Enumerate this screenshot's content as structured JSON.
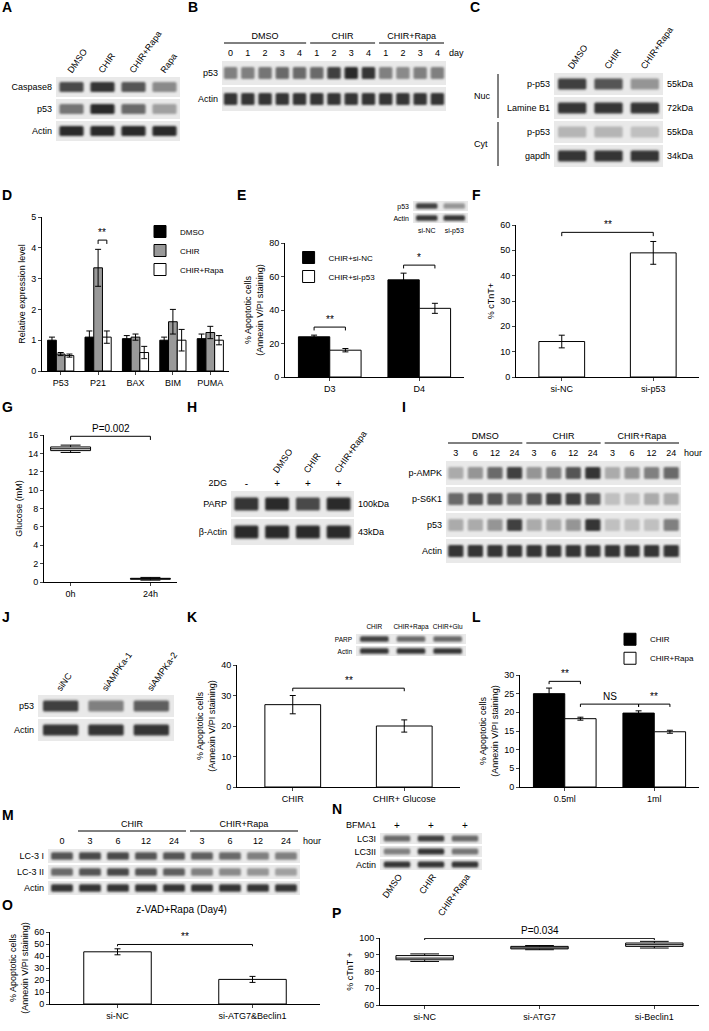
{
  "chart_data": [
    {
      "panel": "D",
      "type": "bar",
      "categories": [
        "P53",
        "P21",
        "BAX",
        "BIM",
        "PUMA"
      ],
      "y_label": "Relative expression level",
      "ylim": [
        0,
        5
      ],
      "yticks": [
        0,
        1,
        2,
        3,
        4,
        5
      ],
      "legend": "top right",
      "series": [
        {
          "name": "DMSO",
          "color": "#000000",
          "values": [
            1.0,
            1.1,
            1.05,
            1.0,
            1.05
          ],
          "errors": [
            0.1,
            0.2,
            0.1,
            0.1,
            0.15
          ]
        },
        {
          "name": "CHIR",
          "color": "#999999",
          "values": [
            0.55,
            3.35,
            1.1,
            1.6,
            1.25
          ],
          "errors": [
            0.05,
            0.6,
            0.1,
            0.4,
            0.2
          ]
        },
        {
          "name": "CHIR+Rapa",
          "color": "#ffffff",
          "values": [
            0.5,
            1.1,
            0.6,
            1.0,
            1.0
          ],
          "errors": [
            0.05,
            0.2,
            0.2,
            0.35,
            0.15
          ]
        }
      ],
      "annotations": [
        {
          "text": "**",
          "from": {
            "category": "P21",
            "series": "CHIR"
          },
          "to": {
            "category": "P21",
            "series": "CHIR+Rapa"
          }
        }
      ]
    },
    {
      "panel": "E",
      "type": "bar",
      "categories": [
        "D3",
        "D4"
      ],
      "y_label": "% Apoptotic cells\n(Annexin V/PI staining)",
      "ylim": [
        0,
        80
      ],
      "yticks": [
        0,
        20,
        40,
        60,
        80
      ],
      "legend": "top left",
      "series": [
        {
          "name": "CHIR+si-NC",
          "color": "#000000",
          "values": [
            24,
            58
          ],
          "errors": [
            1,
            4
          ]
        },
        {
          "name": "CHIR+si-p53",
          "color": "#ffffff",
          "values": [
            16,
            41
          ],
          "errors": [
            1,
            3
          ]
        }
      ],
      "annotations": [
        {
          "text": "**",
          "from": {
            "category": "D3",
            "series": "CHIR+si-NC"
          },
          "to": {
            "category": "D3",
            "series": "CHIR+si-p53"
          }
        },
        {
          "text": "*",
          "from": {
            "category": "D4",
            "series": "CHIR+si-NC"
          },
          "to": {
            "category": "D4",
            "series": "CHIR+si-p53"
          }
        }
      ]
    },
    {
      "panel": "F",
      "type": "bar",
      "categories": [
        "si-NC",
        "si-p53"
      ],
      "y_label": "% cTnT+",
      "ylim": [
        0,
        60
      ],
      "yticks": [
        0,
        10,
        20,
        30,
        40,
        50,
        60
      ],
      "color": "#ffffff",
      "values": [
        14,
        49
      ],
      "errors": [
        2.5,
        4.5
      ],
      "annotations": [
        {
          "text": "**",
          "from": {
            "category": "si-NC"
          },
          "to": {
            "category": "si-p53"
          }
        }
      ]
    },
    {
      "panel": "G",
      "type": "box",
      "categories": [
        "0h",
        "24h"
      ],
      "y_label": "Glucose (mM)",
      "ylim": [
        0,
        16
      ],
      "yticks": [
        0,
        2,
        4,
        6,
        8,
        10,
        12,
        14,
        16
      ],
      "boxes": [
        {
          "min": 14.1,
          "q1": 14.3,
          "median": 14.5,
          "q3": 14.7,
          "max": 14.9
        },
        {
          "min": 0.2,
          "q1": 0.3,
          "median": 0.35,
          "q3": 0.4,
          "max": 0.5
        }
      ],
      "annotations": [
        {
          "text": "P=0.002",
          "from": {
            "category": "0h"
          },
          "to": {
            "category": "24h"
          }
        }
      ]
    },
    {
      "panel": "K",
      "type": "bar",
      "categories": [
        "CHIR",
        "CHIR+ Glucose"
      ],
      "y_label": "% Apoptotic cells\n(Annexin V/PI staining)",
      "ylim": [
        0,
        40
      ],
      "yticks": [
        0,
        10,
        20,
        30,
        40
      ],
      "color": "#ffffff",
      "values": [
        27,
        20
      ],
      "errors": [
        3,
        2
      ],
      "annotations": [
        {
          "text": "**",
          "from": {
            "category": "CHIR"
          },
          "to": {
            "category": "CHIR+ Glucose"
          }
        }
      ]
    },
    {
      "panel": "L",
      "type": "bar",
      "categories": [
        "0.5ml",
        "1ml"
      ],
      "y_label": "% Apoptotic cells\n(Annexin V/PI staining)",
      "ylim": [
        0,
        30
      ],
      "yticks": [
        0,
        5,
        10,
        15,
        20,
        25,
        30
      ],
      "legend": "top right",
      "series": [
        {
          "name": "CHIR",
          "color": "#000000",
          "values": [
            25,
            19.8
          ],
          "errors": [
            1.5,
            0.6
          ]
        },
        {
          "name": "CHIR+Rapa",
          "color": "#ffffff",
          "values": [
            18.3,
            14.8
          ],
          "errors": [
            0.4,
            0.4
          ]
        }
      ],
      "annotations": [
        {
          "text": "**",
          "from": {
            "category": "0.5ml",
            "series": "CHIR"
          },
          "to": {
            "category": "0.5ml",
            "series": "CHIR+Rapa"
          }
        },
        {
          "text": "NS",
          "from": {
            "category": "0.5ml",
            "series": "CHIR+Rapa"
          },
          "to": {
            "category": "1ml",
            "series": "CHIR"
          }
        },
        {
          "text": "**",
          "from": {
            "category": "1ml",
            "series": "CHIR"
          },
          "to": {
            "category": "1ml",
            "series": "CHIR+Rapa"
          }
        }
      ]
    },
    {
      "panel": "O",
      "type": "bar",
      "title": "z-VAD+Rapa (Day4)",
      "categories": [
        "si-NC",
        "si-ATG7&Beclin1"
      ],
      "y_label": "% Apoptotic cells\n(Annexin V/PI staining)",
      "ylim": [
        0,
        60
      ],
      "yticks": [
        0,
        10,
        20,
        30,
        40,
        50,
        60
      ],
      "color": "#ffffff",
      "values": [
        43.5,
        20.5
      ],
      "errors": [
        2.5,
        2.5
      ],
      "annotations": [
        {
          "text": "**",
          "from": {
            "category": "si-NC"
          },
          "to": {
            "category": "si-ATG7&Beclin1"
          }
        }
      ]
    },
    {
      "panel": "P",
      "type": "box",
      "categories": [
        "si-NC",
        "si-ATG7",
        "si-Beclin1"
      ],
      "y_label": "% cTnT +",
      "ylim": [
        60,
        100
      ],
      "yticks": [
        60,
        70,
        80,
        90,
        100
      ],
      "boxes": [
        {
          "min": 86,
          "q1": 87,
          "median": 88,
          "q3": 89.5,
          "max": 90.5
        },
        {
          "min": 93,
          "q1": 93.5,
          "median": 94,
          "q3": 95,
          "max": 95.5
        },
        {
          "min": 94,
          "q1": 95,
          "median": 96,
          "q3": 97,
          "max": 98
        }
      ],
      "annotations": [
        {
          "text": "P=0.034",
          "from": {
            "category": "si-NC"
          },
          "to": {
            "category": "si-Beclin1"
          }
        }
      ]
    }
  ],
  "blots": [
    {
      "panel": "A",
      "lanes": [
        "DMSO",
        "CHIR",
        "CHIR+Rapa",
        "Rapa"
      ],
      "rows": [
        {
          "label": "Caspase8",
          "bands": [
            0.75,
            0.85,
            0.7,
            0.45
          ]
        },
        {
          "label": "p53",
          "bands": [
            0.55,
            0.9,
            0.6,
            0.35
          ]
        },
        {
          "label": "Actin",
          "bands": [
            0.9,
            0.9,
            0.9,
            0.9
          ]
        }
      ]
    },
    {
      "panel": "B",
      "lanes": [
        "0",
        "1",
        "2",
        "3",
        "4",
        "1",
        "2",
        "3",
        "4",
        "1",
        "2",
        "3",
        "4"
      ],
      "lane_unit": "day",
      "groups": [
        {
          "label": "DMSO",
          "count": 5
        },
        {
          "label": "CHIR",
          "count": 4
        },
        {
          "label": "CHIR+Rapa",
          "count": 4
        }
      ],
      "rows": [
        {
          "label": "p53",
          "bands": [
            0.5,
            0.5,
            0.55,
            0.6,
            0.6,
            0.6,
            0.8,
            0.9,
            0.85,
            0.5,
            0.45,
            0.5,
            0.5
          ]
        },
        {
          "label": "Actin",
          "bands": [
            0.85,
            0.85,
            0.85,
            0.85,
            0.85,
            0.85,
            0.85,
            0.85,
            0.85,
            0.85,
            0.85,
            0.85,
            0.85
          ]
        }
      ]
    },
    {
      "panel": "C",
      "lanes": [
        "DMSO",
        "CHIR",
        "CHIR+Rapa"
      ],
      "rows": [
        {
          "section": "Nuc",
          "label": "p-p53",
          "mw": "55kDa",
          "bands": [
            0.8,
            0.7,
            0.4
          ]
        },
        {
          "section": "Nuc",
          "label": "Lamine B1",
          "mw": "72kDa",
          "bands": [
            0.85,
            0.85,
            0.85
          ]
        },
        {
          "section": "Cyt",
          "label": "p-p53",
          "mw": "55kDa",
          "bands": [
            0.25,
            0.25,
            0.2
          ]
        },
        {
          "section": "Cyt",
          "label": "gapdh",
          "mw": "34kDa",
          "bands": [
            0.85,
            0.85,
            0.85
          ]
        }
      ]
    },
    {
      "panel": "H",
      "lanes": [
        null,
        "DMSO",
        "CHIR",
        "CHIR+Rapa"
      ],
      "treatment": {
        "label": "2DG",
        "marks": [
          "-",
          "+",
          "+",
          "+"
        ]
      },
      "rows": [
        {
          "label": "PARP",
          "mw": "100kDa",
          "bands": [
            0.85,
            0.9,
            0.75,
            0.9
          ]
        },
        {
          "label": "β-Actin",
          "mw": "43kDa",
          "bands": [
            0.9,
            0.9,
            0.9,
            0.9
          ]
        }
      ]
    },
    {
      "panel": "I",
      "lanes": [
        "3",
        "6",
        "12",
        "24",
        "3",
        "6",
        "12",
        "24",
        "3",
        "6",
        "12",
        "24"
      ],
      "lane_unit": "hour",
      "groups": [
        {
          "label": "DMSO",
          "count": 4
        },
        {
          "label": "CHIR",
          "count": 4
        },
        {
          "label": "CHIR+Rapa",
          "count": 4
        }
      ],
      "rows": [
        {
          "label": "p-AMPK",
          "bands": [
            0.3,
            0.4,
            0.6,
            0.8,
            0.4,
            0.5,
            0.7,
            0.85,
            0.3,
            0.4,
            0.5,
            0.6
          ]
        },
        {
          "label": "p-S6K1",
          "bands": [
            0.6,
            0.7,
            0.7,
            0.6,
            0.7,
            0.8,
            0.8,
            0.7,
            0.2,
            0.2,
            0.3,
            0.3
          ]
        },
        {
          "label": "p53",
          "bands": [
            0.3,
            0.3,
            0.4,
            0.8,
            0.3,
            0.3,
            0.4,
            0.85,
            0.2,
            0.2,
            0.2,
            0.5
          ]
        },
        {
          "label": "Actin",
          "bands": [
            0.85,
            0.85,
            0.85,
            0.85,
            0.85,
            0.85,
            0.85,
            0.85,
            0.85,
            0.85,
            0.85,
            0.85
          ]
        }
      ]
    },
    {
      "panel": "J",
      "lanes": [
        "siNC",
        "siAMPKa-1",
        "siAMPKa-2"
      ],
      "rows": [
        {
          "label": "p53",
          "bands": [
            0.8,
            0.5,
            0.65
          ]
        },
        {
          "label": "Actin",
          "bands": [
            0.85,
            0.85,
            0.85
          ]
        }
      ]
    },
    {
      "panel": "M",
      "lanes": [
        "0",
        "3",
        "6",
        "12",
        "24",
        "3",
        "6",
        "12",
        "24"
      ],
      "lane_unit": "hour",
      "groups": [
        {
          "label": null,
          "count": 1
        },
        {
          "label": "CHIR",
          "count": 4
        },
        {
          "label": "CHIR+Rapa",
          "count": 4
        }
      ],
      "rows": [
        {
          "label": "LC-3 I",
          "bands": [
            0.7,
            0.75,
            0.75,
            0.7,
            0.7,
            0.65,
            0.6,
            0.5,
            0.5
          ]
        },
        {
          "label": "LC-3 II",
          "bands": [
            0.6,
            0.7,
            0.75,
            0.7,
            0.65,
            0.5,
            0.45,
            0.4,
            0.35
          ]
        },
        {
          "label": "Actin",
          "bands": [
            0.85,
            0.85,
            0.85,
            0.85,
            0.85,
            0.85,
            0.85,
            0.85,
            0.85
          ]
        }
      ]
    },
    {
      "panel": "N",
      "lanes": [
        "DMSO",
        "CHIR",
        "CHIR+Rapa"
      ],
      "treatment": {
        "label": "BFMA1",
        "marks": [
          "+",
          "+",
          "+"
        ]
      },
      "rows": [
        {
          "label": "LC3I",
          "bands": [
            0.6,
            0.8,
            0.6
          ]
        },
        {
          "label": "LC3II",
          "bands": [
            0.5,
            0.85,
            0.55
          ]
        },
        {
          "label": "Actin",
          "bands": [
            0.85,
            0.85,
            0.85
          ]
        }
      ]
    },
    {
      "inset_of": "E",
      "lanes": [
        "si-NC",
        "si-p53"
      ],
      "rows": [
        {
          "label": "p53",
          "bands": [
            0.8,
            0.4
          ]
        },
        {
          "label": "Actin",
          "bands": [
            0.85,
            0.85
          ]
        }
      ]
    },
    {
      "inset_of": "K",
      "lanes": [
        "CHIR",
        "CHIR+Rapa",
        "CHIR+Glu"
      ],
      "rows": [
        {
          "label": "PARP",
          "bands": [
            0.8,
            0.6,
            0.6
          ]
        },
        {
          "label": "Actin",
          "bands": [
            0.85,
            0.85,
            0.85
          ]
        }
      ]
    }
  ]
}
